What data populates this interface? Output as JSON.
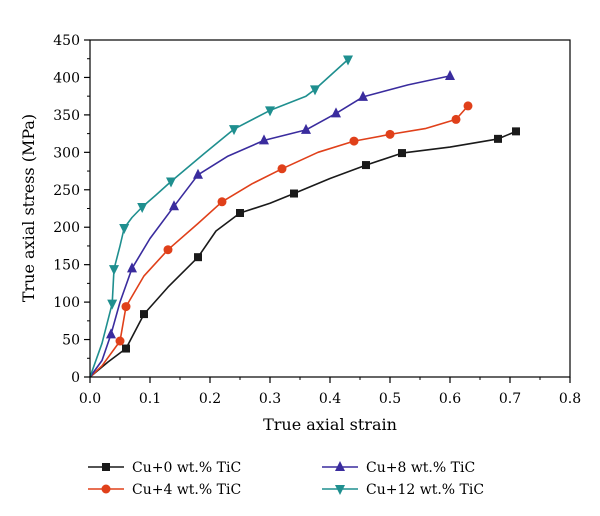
{
  "chart_data": {
    "type": "line",
    "title": "",
    "xlabel": "True axial strain",
    "ylabel": "True axial stress (MPa)",
    "xlim": [
      0.0,
      0.8
    ],
    "ylim": [
      0,
      450
    ],
    "x_ticks": [
      "0.0",
      "0.1",
      "0.2",
      "0.3",
      "0.4",
      "0.5",
      "0.6",
      "0.7",
      "0.8"
    ],
    "y_ticks": [
      "0",
      "50",
      "100",
      "150",
      "200",
      "250",
      "300",
      "350",
      "400",
      "450"
    ],
    "grid": false,
    "legend_position": "bottom",
    "series": [
      {
        "name": "Cu+0 wt.% TiC",
        "color": "#1a1a1a",
        "marker": "square",
        "curve": [
          [
            0,
            0
          ],
          [
            0.03,
            20
          ],
          [
            0.06,
            38
          ],
          [
            0.09,
            84
          ],
          [
            0.13,
            120
          ],
          [
            0.18,
            160
          ],
          [
            0.21,
            195
          ],
          [
            0.25,
            219
          ],
          [
            0.3,
            232
          ],
          [
            0.34,
            245
          ],
          [
            0.4,
            265
          ],
          [
            0.46,
            283
          ],
          [
            0.52,
            299
          ],
          [
            0.6,
            307
          ],
          [
            0.68,
            318
          ],
          [
            0.71,
            328
          ]
        ],
        "markers": [
          [
            0.06,
            38
          ],
          [
            0.09,
            84
          ],
          [
            0.18,
            160
          ],
          [
            0.25,
            219
          ],
          [
            0.34,
            245
          ],
          [
            0.46,
            283
          ],
          [
            0.52,
            299
          ],
          [
            0.68,
            318
          ],
          [
            0.71,
            328
          ]
        ]
      },
      {
        "name": "Cu+4 wt.% TiC",
        "color": "#e0401a",
        "marker": "circle",
        "curve": [
          [
            0,
            0
          ],
          [
            0.02,
            15
          ],
          [
            0.05,
            48
          ],
          [
            0.06,
            94
          ],
          [
            0.09,
            135
          ],
          [
            0.13,
            170
          ],
          [
            0.18,
            205
          ],
          [
            0.22,
            234
          ],
          [
            0.27,
            258
          ],
          [
            0.32,
            278
          ],
          [
            0.38,
            300
          ],
          [
            0.44,
            315
          ],
          [
            0.5,
            324
          ],
          [
            0.56,
            332
          ],
          [
            0.61,
            344
          ],
          [
            0.63,
            362
          ]
        ],
        "markers": [
          [
            0.05,
            48
          ],
          [
            0.06,
            94
          ],
          [
            0.13,
            170
          ],
          [
            0.22,
            234
          ],
          [
            0.32,
            278
          ],
          [
            0.44,
            315
          ],
          [
            0.5,
            324
          ],
          [
            0.61,
            344
          ],
          [
            0.63,
            362
          ]
        ]
      },
      {
        "name": "Cu+8 wt.% TiC",
        "color": "#3a2c9e",
        "marker": "triangle-up",
        "curve": [
          [
            0,
            0
          ],
          [
            0.02,
            22
          ],
          [
            0.035,
            57
          ],
          [
            0.05,
            100
          ],
          [
            0.07,
            145
          ],
          [
            0.1,
            185
          ],
          [
            0.14,
            228
          ],
          [
            0.18,
            270
          ],
          [
            0.23,
            295
          ],
          [
            0.29,
            316
          ],
          [
            0.36,
            330
          ],
          [
            0.41,
            352
          ],
          [
            0.455,
            374
          ],
          [
            0.53,
            390
          ],
          [
            0.6,
            402
          ]
        ],
        "markers": [
          [
            0.035,
            57
          ],
          [
            0.07,
            145
          ],
          [
            0.14,
            228
          ],
          [
            0.18,
            270
          ],
          [
            0.29,
            316
          ],
          [
            0.36,
            330
          ],
          [
            0.41,
            352
          ],
          [
            0.455,
            374
          ],
          [
            0.6,
            402
          ]
        ]
      },
      {
        "name": "Cu+12 wt.% TiC",
        "color": "#1f8f8f",
        "marker": "triangle-down",
        "curve": [
          [
            0,
            0
          ],
          [
            0.02,
            45
          ],
          [
            0.037,
            98
          ],
          [
            0.04,
            144
          ],
          [
            0.05,
            175
          ],
          [
            0.057,
            199
          ],
          [
            0.07,
            213
          ],
          [
            0.087,
            227
          ],
          [
            0.11,
            243
          ],
          [
            0.135,
            261
          ],
          [
            0.19,
            298
          ],
          [
            0.24,
            331
          ],
          [
            0.3,
            356
          ],
          [
            0.36,
            375
          ],
          [
            0.375,
            384
          ],
          [
            0.43,
            424
          ]
        ],
        "markers": [
          [
            0.037,
            98
          ],
          [
            0.04,
            144
          ],
          [
            0.057,
            199
          ],
          [
            0.087,
            227
          ],
          [
            0.135,
            261
          ],
          [
            0.24,
            331
          ],
          [
            0.3,
            356
          ],
          [
            0.375,
            384
          ],
          [
            0.43,
            424
          ]
        ]
      }
    ]
  }
}
